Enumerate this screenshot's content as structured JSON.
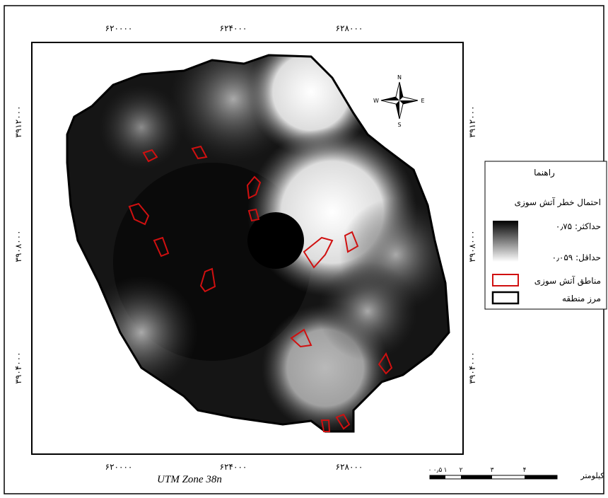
{
  "map": {
    "x_labels": [
      "۶۲۰۰۰۰",
      "۶۲۴۰۰۰",
      "۶۲۸۰۰۰"
    ],
    "y_labels": [
      "۳۹۱۲۰۰۰",
      "۳۹۰۸۰۰۰",
      "۳۹۰۴۰۰۰"
    ],
    "projection": "UTM Zone 38n",
    "north_arrow": {
      "n": "N",
      "s": "S",
      "e": "E",
      "w": "W"
    },
    "legend": {
      "title": "راهنما",
      "heading": "احتمال خطر آتش سوزی",
      "max": "حداکثر: ۰٫۷۵",
      "min": "حداقل: ۰٫۰۵۹",
      "fire_areas": "مناطق آتش سوزی",
      "boundary": "مرز منطقه"
    },
    "scale_bar": {
      "ticks": [
        "۰",
        "۰٫۵",
        "۱",
        "۲",
        "۳",
        "۴"
      ],
      "unit": "کیلومتر"
    }
  }
}
